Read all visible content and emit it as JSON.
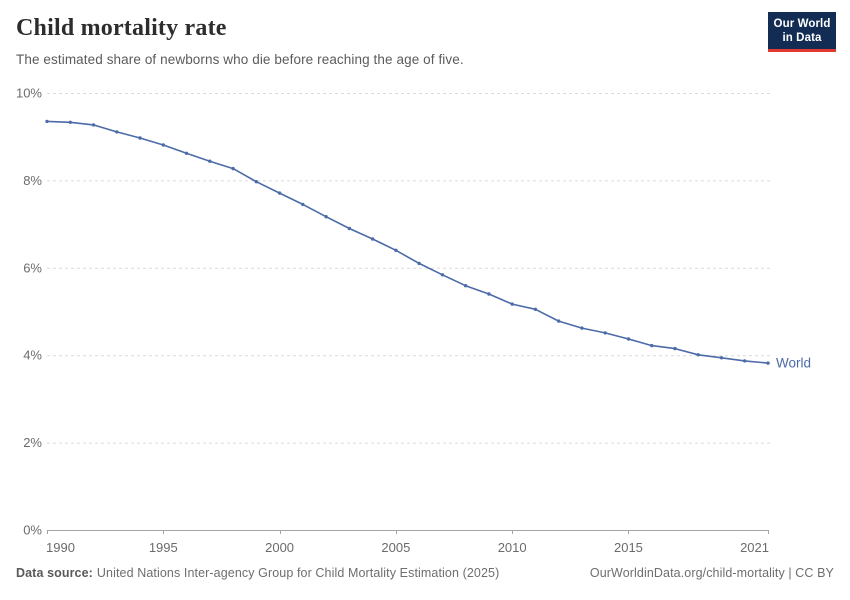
{
  "header": {
    "title": "Child mortality rate",
    "subtitle": "The estimated share of newborns who die before reaching the age of five.",
    "logo": {
      "line1": "Our World",
      "line2": "in Data"
    }
  },
  "chart_data": {
    "type": "line",
    "title": "Child mortality rate",
    "subtitle": "The estimated share of newborns who die before reaching the age of five.",
    "unit": "%",
    "xlabel": "",
    "ylabel": "",
    "xlim": [
      1990,
      2021
    ],
    "ylim": [
      0,
      10
    ],
    "x_ticks": [
      1990,
      1995,
      2000,
      2005,
      2010,
      2015,
      2021
    ],
    "y_ticks": [
      0,
      2,
      4,
      6,
      8,
      10
    ],
    "y_tick_suffix": "%",
    "grid": "horizontal-dashed",
    "legend_position": "end-of-line-label",
    "series": [
      {
        "name": "World",
        "color": "#4C6BA8",
        "years": [
          1990,
          1991,
          1992,
          1993,
          1994,
          1995,
          1996,
          1997,
          1998,
          1999,
          2000,
          2001,
          2002,
          2003,
          2004,
          2005,
          2006,
          2007,
          2008,
          2009,
          2010,
          2011,
          2012,
          2013,
          2014,
          2015,
          2016,
          2017,
          2018,
          2019,
          2020,
          2021
        ],
        "values": [
          9.35,
          9.33,
          9.27,
          9.11,
          8.97,
          8.81,
          8.62,
          8.44,
          8.27,
          7.97,
          7.71,
          7.45,
          7.17,
          6.9,
          6.66,
          6.4,
          6.1,
          5.84,
          5.59,
          5.4,
          5.17,
          5.05,
          4.78,
          4.62,
          4.51,
          4.37,
          4.22,
          4.15,
          4.01,
          3.94,
          3.87,
          3.82
        ]
      }
    ]
  },
  "footer": {
    "source_label": "Data source:",
    "source_text": "United Nations Inter-agency Group for Child Mortality Estimation (2025)",
    "credit": "OurWorldinData.org/child-mortality | CC BY"
  },
  "colors": {
    "line": "#4C6BA8",
    "series_label": "#4C6BA8",
    "grid": "#dadada",
    "axis": "#a5a5a5",
    "tick_text": "#6b6b6b",
    "title_text": "#2d2d2d",
    "subtitle_text": "#5b5b5b",
    "logo_bg": "#122c54",
    "logo_accent": "#e0392f"
  }
}
